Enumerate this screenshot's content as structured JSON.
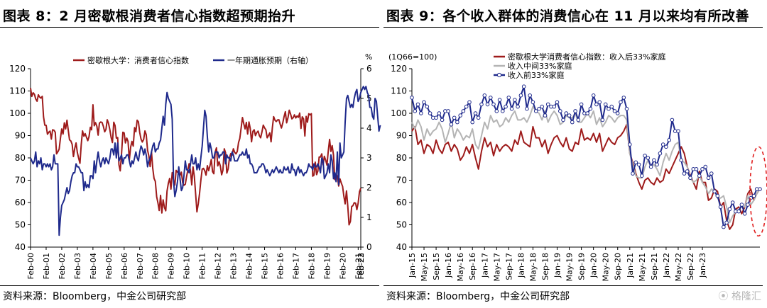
{
  "watermark": "格隆汇",
  "panels": [
    {
      "title": "图表 8：2 月密歇根消费者信心指数超预期抬升",
      "source": "资料来源：Bloomberg，中金公司研究部"
    },
    {
      "title": "图表 9：各个收入群体的消费信心在 11 月以来均有所改善",
      "source": "资料来源：Bloomberg，中金公司研究部"
    }
  ],
  "chart_data": [
    {
      "type": "line",
      "x_type": "monthly",
      "x_start": "2000-02",
      "xtick_labels": [
        "Feb-00",
        "Feb-01",
        "Feb-02",
        "Feb-03",
        "Feb-04",
        "Feb-05",
        "Feb-06",
        "Feb-07",
        "Feb-08",
        "Feb-09",
        "Feb-10",
        "Feb-11",
        "Feb-12",
        "Feb-13",
        "Feb-14",
        "Feb-15",
        "Feb-16",
        "Feb-17",
        "Feb-18",
        "Feb-19",
        "Feb-20",
        "Feb-21",
        "Feb-22",
        "Feb-23"
      ],
      "ylim": [
        40,
        120
      ],
      "yticks": [
        40,
        50,
        60,
        70,
        80,
        90,
        100,
        110,
        120
      ],
      "y2lim": [
        0,
        6
      ],
      "y2ticks": [
        0,
        1,
        2,
        3,
        4,
        5,
        6
      ],
      "y2_unit": "%",
      "legend_position": "top",
      "series": [
        {
          "name": "密歇根大学：消费者信心指数",
          "axis": "left",
          "color": "#9e1b1b",
          "values": [
            111.3,
            107.6,
            109.2,
            108.5,
            106.4,
            105.4,
            108.3,
            107.3,
            106.8,
            107.6,
            98.4,
            94.7,
            94.6,
            90.6,
            91.5,
            92.0,
            88.4,
            92.6,
            92.4,
            91.5,
            81.8,
            82.7,
            83.9,
            88.8,
            93.0,
            90.7,
            95.7,
            93.0,
            96.9,
            92.4,
            88.1,
            87.6,
            86.1,
            80.6,
            84.2,
            86.7,
            82.4,
            79.9,
            77.6,
            86.0,
            92.1,
            89.7,
            90.9,
            89.3,
            87.7,
            89.6,
            93.7,
            92.6,
            103.8,
            94.4,
            95.8,
            94.2,
            90.2,
            95.6,
            96.1,
            95.9,
            94.2,
            91.7,
            92.8,
            97.1,
            95.5,
            92.6,
            89.1,
            86.9,
            96.0,
            94.5,
            88.9,
            89.1,
            76.9,
            74.2,
            81.6,
            91.5,
            91.2,
            86.7,
            88.9,
            87.4,
            79.1,
            84.9,
            87.4,
            85.3,
            93.6,
            91.7,
            96.9,
            96.2,
            91.3,
            88.4,
            87.1,
            88.3,
            92.1,
            90.4,
            83.4,
            80.9,
            76.1,
            82.7,
            75.3,
            70.8,
            69.5,
            62.6,
            59.8,
            56.4,
            63.2,
            55.3,
            61.2,
            57.7,
            56.3,
            65.1,
            68.7,
            70.8,
            66.0,
            73.4,
            70.1,
            67.8,
            74.4,
            73.6,
            73.6,
            72.2,
            73.6,
            68.9,
            67.7,
            68.2,
            71.6,
            74.5,
            77.4,
            74.2,
            67.9,
            76.0,
            71.5,
            63.7,
            55.8,
            59.5,
            64.1,
            69.9,
            75.0,
            75.3,
            74.3,
            72.3,
            76.5,
            74.3,
            76.4,
            79.3,
            73.8,
            72.9,
            82.6,
            84.5,
            76.4,
            78.3,
            76.3,
            72.4,
            74.5,
            84.1,
            82.3,
            73.2,
            75.1,
            80.0,
            81.9,
            81.2,
            84.1,
            82.5,
            81.8,
            82.9,
            86.9,
            88.8,
            93.6,
            98.1,
            95.4,
            93.0,
            95.9,
            90.7,
            96.1,
            93.1,
            87.2,
            91.9,
            92.6,
            90.0,
            91.3,
            92.0,
            90.0,
            89.0,
            91.7,
            94.7,
            93.5,
            92.6,
            89.0,
            90.0,
            91.2,
            87.2,
            93.5,
            98.5,
            96.9,
            96.3,
            97.0,
            97.1,
            95.1,
            93.4,
            95.7,
            98.5,
            100.7,
            95.7,
            98.0,
            101.4,
            99.7,
            97.5,
            98.0,
            99.3,
            97.9,
            98.8,
            98.2,
            100.1,
            93.2,
            98.4,
            97.5,
            89.8,
            98.6,
            96.0,
            99.8,
            99.3,
            99.8,
            71.8,
            72.3,
            78.1,
            72.5,
            74.1,
            80.4,
            80.4,
            81.8,
            76.9,
            80.7,
            79.0,
            76.8,
            83.0,
            88.3,
            82.9,
            85.5,
            81.2,
            70.3,
            72.8,
            71.7,
            67.4,
            70.6,
            68.8,
            67.2,
            62.8,
            59.4,
            65.2,
            58.4,
            50.0,
            51.5,
            58.2,
            58.6,
            59.9,
            59.7,
            56.8,
            59.7,
            64.9,
            66.4
          ]
        },
        {
          "name": "一年期通胀预期（右轴）",
          "axis": "right",
          "color": "#1f2a8c",
          "values": [
            3.0,
            2.9,
            2.8,
            2.9,
            3.2,
            2.7,
            2.9,
            2.8,
            3.0,
            2.6,
            2.8,
            2.8,
            2.7,
            2.8,
            2.7,
            2.8,
            2.6,
            2.7,
            3.1,
            2.8,
            2.8,
            2.8,
            0.4,
            1.0,
            1.4,
            1.5,
            1.6,
            1.8,
            2.0,
            1.8,
            1.9,
            2.2,
            2.4,
            2.5,
            2.5,
            2.8,
            2.7,
            2.7,
            2.6,
            2.5,
            2.5,
            1.9,
            2.2,
            2.0,
            2.1,
            2.0,
            2.4,
            2.4,
            2.3,
            2.9,
            2.5,
            2.9,
            3.2,
            2.9,
            2.7,
            2.9,
            3.0,
            2.8,
            3.0,
            2.9,
            2.8,
            3.0,
            3.3,
            3.3,
            3.1,
            3.5,
            3.0,
            3.5,
            2.9,
            3.0,
            3.1,
            2.8,
            3.0,
            3.0,
            3.1,
            3.1,
            2.9,
            2.7,
            2.9,
            2.8,
            3.0,
            3.2,
            3.0,
            2.9,
            3.2,
            3.4,
            3.3,
            3.1,
            3.3,
            3.1,
            2.7,
            2.9,
            3.0,
            3.2,
            3.4,
            3.5,
            3.2,
            3.3,
            3.3,
            3.5,
            3.6,
            4.0,
            4.4,
            4.1,
            4.8,
            5.2,
            5.0,
            4.9,
            4.8,
            4.3,
            2.2,
            1.7,
            1.9,
            2.2,
            2.7,
            2.3,
            1.9,
            2.0,
            2.4,
            2.9,
            2.6,
            2.6,
            2.5,
            2.8,
            3.1,
            2.8,
            2.8,
            3.0,
            2.6,
            2.8,
            2.6,
            3.0,
            3.4,
            4.0,
            4.6,
            4.4,
            3.7,
            3.2,
            3.5,
            3.3,
            3.0,
            3.0,
            3.2,
            3.2,
            3.2,
            3.0,
            3.1,
            3.1,
            3.2,
            3.2,
            2.8,
            3.1,
            3.0,
            3.0,
            2.9,
            3.2,
            3.1,
            2.9,
            2.9,
            2.9,
            3.0,
            3.1,
            3.1,
            3.2,
            3.1,
            3.1,
            3.3,
            3.0,
            3.1,
            2.8,
            2.8,
            2.7,
            2.5,
            2.5,
            2.5,
            2.6,
            2.7,
            2.7,
            2.8,
            2.8,
            2.7,
            2.5,
            2.6,
            2.5,
            2.4,
            2.5,
            2.6,
            2.5,
            2.6,
            2.7,
            2.6,
            2.5,
            2.6,
            2.5,
            2.5,
            2.7,
            2.6,
            2.6,
            2.7,
            2.5,
            2.5,
            2.8,
            2.6,
            2.6,
            2.4,
            2.6,
            2.7,
            2.5,
            2.6,
            2.5,
            2.4,
            2.5,
            2.5,
            2.6,
            2.8,
            2.7,
            2.7,
            2.6,
            2.8,
            2.7,
            2.7,
            2.8,
            2.7,
            2.5,
            3.0,
            2.9,
            2.3,
            2.4,
            2.5,
            2.8,
            2.5,
            3.1,
            2.9,
            2.3,
            2.5,
            2.2,
            3.2,
            2.1,
            3.5,
            3.0,
            3.1,
            3.2,
            4.2,
            5.0,
            5.1,
            4.9,
            4.7,
            4.8,
            4.7,
            5.0,
            5.2,
            5.3,
            4.9,
            5.0,
            5.2,
            5.3,
            5.4,
            5.3,
            5.4,
            5.2,
            5.1,
            4.7,
            4.7,
            4.4,
            4.3,
            5.0,
            4.9,
            4.4,
            3.9,
            4.1
          ]
        }
      ]
    },
    {
      "type": "line",
      "x_type": "monthly",
      "x_start": "2015-01",
      "xtick_labels": [
        "Jan-15",
        "May-15",
        "Sep-15",
        "Jan-16",
        "May-16",
        "Sep-16",
        "Jan-17",
        "May-17",
        "Sep-17",
        "Jan-18",
        "May-18",
        "Sep-18",
        "Jan-19",
        "May-19",
        "Sep-19",
        "Jan-20",
        "May-20",
        "Sep-20",
        "Jan-21",
        "May-21",
        "Sep-21",
        "Jan-22",
        "May-22",
        "Sep-22",
        "Jan-23"
      ],
      "ylim": [
        40,
        120
      ],
      "yticks": [
        40,
        50,
        60,
        70,
        80,
        90,
        100,
        110,
        120
      ],
      "unit_label": "(1Q66=100)",
      "legend_position": "top-left",
      "annotation": "red dashed ellipse around latest values",
      "series": [
        {
          "name": "密歇根大学消费者信心指数：收入后33%家庭",
          "color": "#9e1b1b",
          "marker": "none",
          "values": [
            92,
            94,
            86,
            88,
            82,
            86,
            85,
            82,
            88,
            84,
            82,
            86,
            87,
            83,
            86,
            84,
            79,
            81,
            85,
            82,
            86,
            80,
            75,
            83,
            89,
            85,
            87,
            81,
            86,
            83,
            85,
            86,
            85,
            83,
            88,
            86,
            92,
            87,
            86,
            85,
            94,
            89,
            89,
            85,
            88,
            82,
            86,
            89,
            90,
            87,
            85,
            89,
            84,
            83,
            87,
            86,
            93,
            88,
            89,
            88,
            91,
            87,
            91,
            83,
            86,
            89,
            87,
            86,
            89,
            90,
            92,
            95,
            82,
            78,
            73,
            69,
            66,
            70,
            71,
            69,
            68,
            71,
            69,
            70,
            75,
            73,
            76,
            79,
            82,
            85,
            82,
            76,
            72,
            69,
            66,
            74,
            69,
            69,
            61,
            62,
            66,
            65,
            58,
            60,
            52,
            48,
            50,
            57,
            58,
            55,
            58,
            64,
            66,
            61,
            64,
            66
          ]
        },
        {
          "name": "收入中间33%家庭",
          "color": "#b4b4b4",
          "marker": "none",
          "values": [
            96,
            93,
            97,
            94,
            88,
            93,
            90,
            92,
            93,
            96,
            93,
            87,
            91,
            96,
            89,
            93,
            91,
            88,
            90,
            89,
            93,
            86,
            84,
            90,
            96,
            93,
            99,
            96,
            97,
            94,
            95,
            98,
            96,
            99,
            101,
            97,
            97,
            98,
            96,
            99,
            103,
            101,
            100,
            97,
            101,
            96,
            99,
            101,
            99,
            95,
            96,
            99,
            98,
            98,
            100,
            96,
            96,
            98,
            100,
            98,
            101,
            95,
            98,
            94,
            96,
            99,
            98,
            96,
            98,
            99,
            99,
            97,
            82,
            77,
            72,
            71,
            71,
            76,
            79,
            76,
            77,
            75,
            72,
            78,
            82,
            79,
            83,
            86,
            87,
            79,
            78,
            76,
            71,
            69,
            70,
            72,
            69,
            67,
            64,
            66,
            65,
            62,
            62,
            63,
            58,
            51,
            54,
            56,
            57,
            58,
            58,
            63,
            59,
            61,
            64,
            66
          ]
        },
        {
          "name": "收入前33%家庭",
          "color": "#1f2a8c",
          "marker": "circle",
          "values": [
            107,
            101,
            104,
            100,
            105,
            103,
            100,
            98,
            98,
            100,
            97,
            101,
            101,
            95,
            98,
            96,
            99,
            101,
            103,
            105,
            96,
            100,
            98,
            104,
            108,
            104,
            107,
            104,
            101,
            106,
            101,
            103,
            107,
            102,
            106,
            103,
            108,
            112,
            102,
            108,
            105,
            101,
            102,
            103,
            99,
            104,
            103,
            103,
            105,
            101,
            97,
            100,
            99,
            96,
            101,
            97,
            104,
            100,
            100,
            102,
            108,
            104,
            105,
            97,
            104,
            102,
            103,
            101,
            100,
            105,
            107,
            102,
            86,
            73,
            78,
            77,
            72,
            81,
            80,
            76,
            79,
            77,
            82,
            86,
            85,
            88,
            97,
            92,
            92,
            79,
            73,
            74,
            71,
            75,
            75,
            72,
            75,
            76,
            71,
            73,
            65,
            63,
            58,
            49,
            51,
            57,
            60,
            56,
            56,
            59,
            55,
            59,
            62,
            63,
            66,
            66
          ]
        }
      ]
    }
  ]
}
